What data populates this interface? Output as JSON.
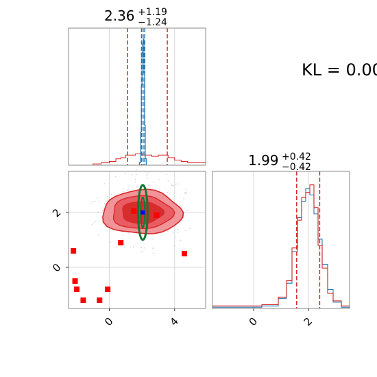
{
  "chart_data": [
    {
      "panel": "top-left",
      "type": "histogram",
      "title": {
        "median": "2.36",
        "plus": "+1.19",
        "minus": "−1.24"
      },
      "x_range": [
        -2.5,
        5.9
      ],
      "grid": true,
      "series": [
        {
          "name": "",
          "color": "#d62728",
          "quantile_lines": [
            1.12,
            3.55
          ],
          "bins": [
            [
              -2.5,
              0
            ],
            [
              -1.0,
              0.01
            ],
            [
              -0.5,
              0.02
            ],
            [
              0.0,
              0.03
            ],
            [
              0.4,
              0.05
            ],
            [
              0.7,
              0.06
            ],
            [
              1.0,
              0.08
            ],
            [
              1.6,
              0.09
            ],
            [
              2.0,
              0.08
            ],
            [
              2.6,
              0.07
            ],
            [
              3.0,
              0.08
            ],
            [
              3.6,
              0.06
            ],
            [
              4.0,
              0.04
            ],
            [
              4.4,
              0.03
            ],
            [
              4.8,
              0.02
            ],
            [
              5.4,
              0.02
            ],
            [
              5.9,
              0.02
            ]
          ]
        },
        {
          "name": "",
          "color": "#1f77b4",
          "quantile_lines": [
            1.97,
            2.07,
            2.17
          ],
          "bins": [
            [
              1.85,
              0.02
            ],
            [
              1.92,
              0.25
            ],
            [
              1.96,
              0.6
            ],
            [
              2.0,
              0.85
            ],
            [
              2.04,
              0.92
            ],
            [
              2.08,
              0.95
            ],
            [
              2.12,
              0.7
            ],
            [
              2.16,
              0.3
            ],
            [
              2.2,
              0.05
            ],
            [
              2.26,
              0
            ]
          ]
        }
      ]
    },
    {
      "panel": "bottom-left",
      "type": "scatter",
      "x_range": [
        -2.5,
        5.9
      ],
      "y_range": [
        -1.5,
        3.5
      ],
      "yticks": [
        "0",
        "2"
      ],
      "xticks": [
        "0",
        "4"
      ],
      "grid": true,
      "red_contour_center": [
        2.0,
        2.0
      ],
      "green_ellipse": {
        "cx": 2.05,
        "cy": 2.0,
        "color": "#117733"
      },
      "blue_point": [
        2.05,
        2.0
      ],
      "red_squares": [
        [
          -2.2,
          0.6
        ],
        [
          -2.1,
          -0.5
        ],
        [
          -2.0,
          -0.8
        ],
        [
          -1.6,
          -1.2
        ],
        [
          -0.1,
          -0.8
        ],
        [
          0.7,
          0.9
        ],
        [
          1.5,
          2.05
        ],
        [
          2.9,
          1.9
        ],
        [
          4.6,
          0.5
        ],
        [
          -0.6,
          -1.2
        ]
      ]
    },
    {
      "panel": "bottom-right",
      "type": "histogram",
      "title": {
        "median": "1.99",
        "plus": "+0.42",
        "minus": "−0.42"
      },
      "x_range": [
        -1.5,
        3.5
      ],
      "xticks": [
        "0",
        "2"
      ],
      "grid": true,
      "quantile_lines": [
        1.57,
        2.41
      ],
      "series": [
        {
          "name": "",
          "color": "#1f77b4",
          "bins": [
            [
              -1.5,
              0.01
            ],
            [
              0.3,
              0.02
            ],
            [
              0.9,
              0.08
            ],
            [
              1.2,
              0.2
            ],
            [
              1.4,
              0.45
            ],
            [
              1.6,
              0.72
            ],
            [
              1.75,
              0.85
            ],
            [
              1.9,
              0.95
            ],
            [
              2.05,
              0.9
            ],
            [
              2.2,
              0.75
            ],
            [
              2.35,
              0.55
            ],
            [
              2.5,
              0.35
            ],
            [
              2.7,
              0.15
            ],
            [
              2.9,
              0.05
            ],
            [
              3.2,
              0.01
            ],
            [
              3.5,
              0
            ]
          ]
        },
        {
          "name": "",
          "color": "#d62728",
          "bins": [
            [
              -1.5,
              0.02
            ],
            [
              0.3,
              0.03
            ],
            [
              0.9,
              0.09
            ],
            [
              1.2,
              0.22
            ],
            [
              1.4,
              0.48
            ],
            [
              1.6,
              0.7
            ],
            [
              1.75,
              0.88
            ],
            [
              1.9,
              0.92
            ],
            [
              2.05,
              0.98
            ],
            [
              2.2,
              0.8
            ],
            [
              2.35,
              0.5
            ],
            [
              2.5,
              0.32
            ],
            [
              2.7,
              0.12
            ],
            [
              2.9,
              0.06
            ],
            [
              3.2,
              0.02
            ],
            [
              3.5,
              0
            ]
          ]
        }
      ]
    }
  ],
  "annotation": "KL = 0.00",
  "colors": {
    "red": "#d62728",
    "blue": "#1f77b4",
    "green": "#117733",
    "axis": "#888888",
    "grid": "#d8d8d8"
  }
}
